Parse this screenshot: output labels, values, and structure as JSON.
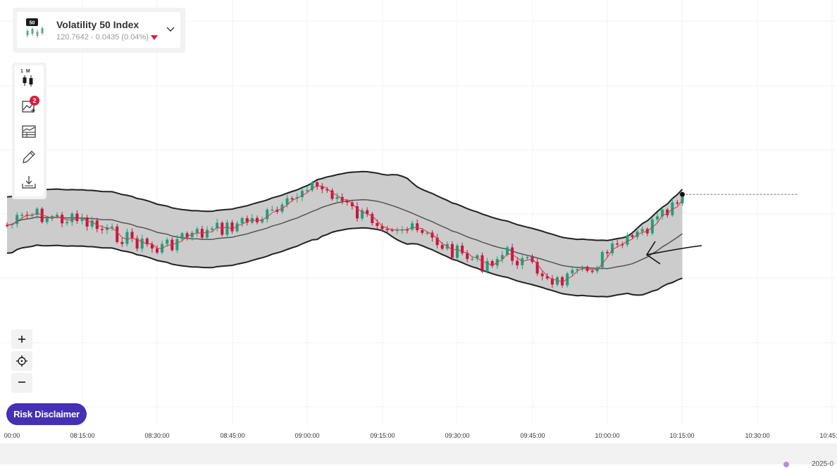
{
  "symbol": {
    "name": "Volatility 50 Index",
    "icon_badge": "50",
    "price_text": "120.7642 - 0.0435 (0.04%)",
    "direction": "down",
    "down_color": "#e6173d",
    "dropdown_icon": "chevron-down-icon"
  },
  "toolbar": {
    "timeframe_label": "1 M",
    "indicators_count": "2",
    "tools": [
      "chart-type-icon",
      "indicators-icon",
      "studies-icon",
      "drawing-pencil-icon",
      "download-icon"
    ]
  },
  "zoom": {
    "zoom_in_icon": "plus-icon",
    "crosshair_icon": "crosshair-icon",
    "zoom_out_icon": "minus-icon"
  },
  "risk_button_label": "Risk Disclaimer",
  "risk_button_color": "#4530b3",
  "time_axis": {
    "ticks": [
      "00:00",
      "08:15:00",
      "08:30:00",
      "08:45:00",
      "09:00:00",
      "09:15:00",
      "09:30:00",
      "09:45:00",
      "10:00:00",
      "10:15:00",
      "10:30:00",
      "10:45:"
    ]
  },
  "footer": {
    "date_text": "2025-0"
  },
  "chart_data": {
    "type": "candlestick",
    "interval_minutes": 1,
    "up_color": "#1aa37a",
    "down_color": "#c8153f",
    "band_color": "#c9c9c9",
    "current_price_line": "dashed",
    "overlays": [
      "Bollinger Bands",
      "moving average"
    ],
    "x_start": "08:00",
    "x_end": "10:15",
    "close_path": [
      [
        "08:00",
        0.64
      ],
      [
        "08:05",
        0.58
      ],
      [
        "08:10",
        0.6
      ],
      [
        "08:15",
        0.62
      ],
      [
        "08:20",
        0.68
      ],
      [
        "08:25",
        0.72
      ],
      [
        "08:30",
        0.78
      ],
      [
        "08:35",
        0.71
      ],
      [
        "08:40",
        0.68
      ],
      [
        "08:45",
        0.64
      ],
      [
        "08:50",
        0.6
      ],
      [
        "08:55",
        0.56
      ],
      [
        "09:00",
        0.4
      ],
      [
        "09:05",
        0.46
      ],
      [
        "09:10",
        0.58
      ],
      [
        "09:15",
        0.62
      ],
      [
        "09:20",
        0.66
      ],
      [
        "09:25",
        0.72
      ],
      [
        "09:30",
        0.8
      ],
      [
        "09:35",
        0.86
      ],
      [
        "09:40",
        0.8
      ],
      [
        "09:45",
        0.88
      ],
      [
        "09:50",
        0.96
      ],
      [
        "09:55",
        0.92
      ],
      [
        "10:00",
        0.8
      ],
      [
        "10:05",
        0.72
      ],
      [
        "10:10",
        0.62
      ],
      [
        "10:15",
        0.5
      ]
    ]
  }
}
